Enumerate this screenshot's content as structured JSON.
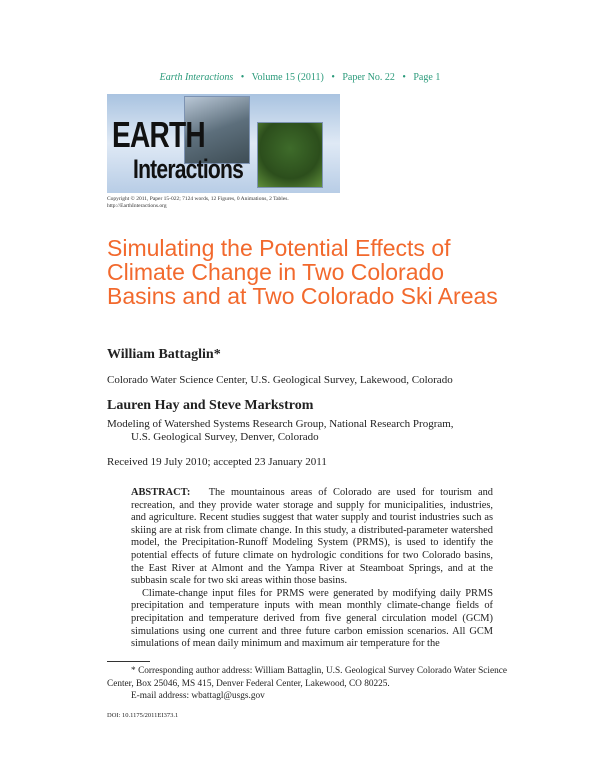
{
  "header": {
    "journal": "Earth Interactions",
    "volume": "Volume 15 (2011)",
    "paper": "Paper No. 22",
    "page": "Page 1",
    "separator": "•"
  },
  "logo": {
    "line1": "EARTH",
    "line2": "Interactions"
  },
  "copyright": {
    "line1": "Copyright © 2011, Paper 15-022; 7124 words, 12 Figures, 0 Animations, 2 Tables.",
    "line2": "http://EarthInteractions.org"
  },
  "title": "Simulating the Potential Effects of Climate Change in Two Colorado Basins and at Two Colorado Ski Areas",
  "authors": [
    {
      "name": "William Battaglin*",
      "affiliation": "Colorado Water Science Center, U.S. Geological Survey, Lakewood, Colorado"
    },
    {
      "name": "Lauren Hay and Steve Markstrom",
      "affiliation_line1": "Modeling of Watershed Systems Research Group, National Research Program,",
      "affiliation_line2": "U.S. Geological Survey, Denver, Colorado"
    }
  ],
  "received": "Received 19 July 2010; accepted 23 January 2011",
  "abstract": {
    "label": "ABSTRACT:",
    "p1": "The mountainous areas of Colorado are used for tourism and recreation, and they provide water storage and supply for municipalities, industries, and agriculture. Recent studies suggest that water supply and tourist industries such as skiing are at risk from climate change. In this study, a distributed-parameter watershed model, the Precipitation-Runoff Modeling System (PRMS), is used to identify the potential effects of future climate on hydrologic conditions for two Colorado basins, the East River at Almont and the Yampa River at Steamboat Springs, and at the subbasin scale for two ski areas within those basins.",
    "p2": "Climate-change input files for PRMS were generated by modifying daily PRMS precipitation and temperature inputs with mean monthly climate-change fields of precipitation and temperature derived from five general circulation model (GCM) simulations using one current and three future carbon emission scenarios. All GCM simulations of mean daily minimum and maximum air temperature for the"
  },
  "footnote": {
    "line1": "* Corresponding author address: William Battaglin, U.S. Geological Survey Colorado Water Science Center, Box 25046, MS 415, Denver Federal Center, Lakewood, CO 80225.",
    "email": "E-mail address: wbattagl@usgs.gov"
  },
  "doi": "DOI: 10.1175/2011EI373.1",
  "colors": {
    "title": "#f2692d",
    "header": "#2a9a7a"
  }
}
